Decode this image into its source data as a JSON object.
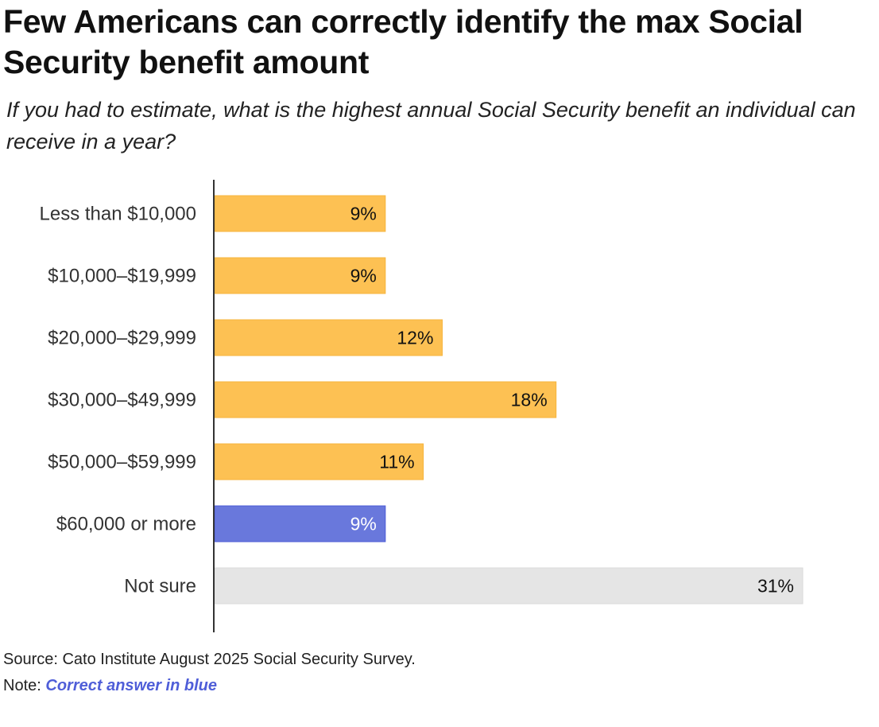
{
  "title": "Few Americans can correctly identify the max Social Security benefit amount",
  "subtitle": "If you had to estimate, what is the highest annual Social Security benefit an individual can receive in a year?",
  "source": "Source: Cato Institute August 2025 Social Security Survey.",
  "note_label": "Note:",
  "note_text": "Correct answer in blue",
  "colors": {
    "default": "#fdc153",
    "correct": "#6978dc",
    "not_sure": "#e5e5e5",
    "correct_text": "#4f5ed8"
  },
  "chart_data": {
    "type": "bar",
    "orientation": "horizontal",
    "title": "Few Americans can correctly identify the max Social Security benefit amount",
    "subtitle": "If you had to estimate, what is the highest annual Social Security benefit an individual can receive in a year?",
    "categories": [
      "Less than $10,000",
      "$10,000–$19,999",
      "$20,000–$29,999",
      "$30,000–$49,999",
      "$50,000–$59,999",
      "$60,000 or more",
      "Not sure"
    ],
    "values": [
      9,
      9,
      12,
      18,
      11,
      9,
      31
    ],
    "value_labels": [
      "9%",
      "9%",
      "12%",
      "18%",
      "11%",
      "9%",
      "31%"
    ],
    "bar_colors": [
      "#fdc153",
      "#fdc153",
      "#fdc153",
      "#fdc153",
      "#fdc153",
      "#6978dc",
      "#e5e5e5"
    ],
    "xlim": [
      0,
      31
    ],
    "grid": false,
    "unit": "%"
  }
}
